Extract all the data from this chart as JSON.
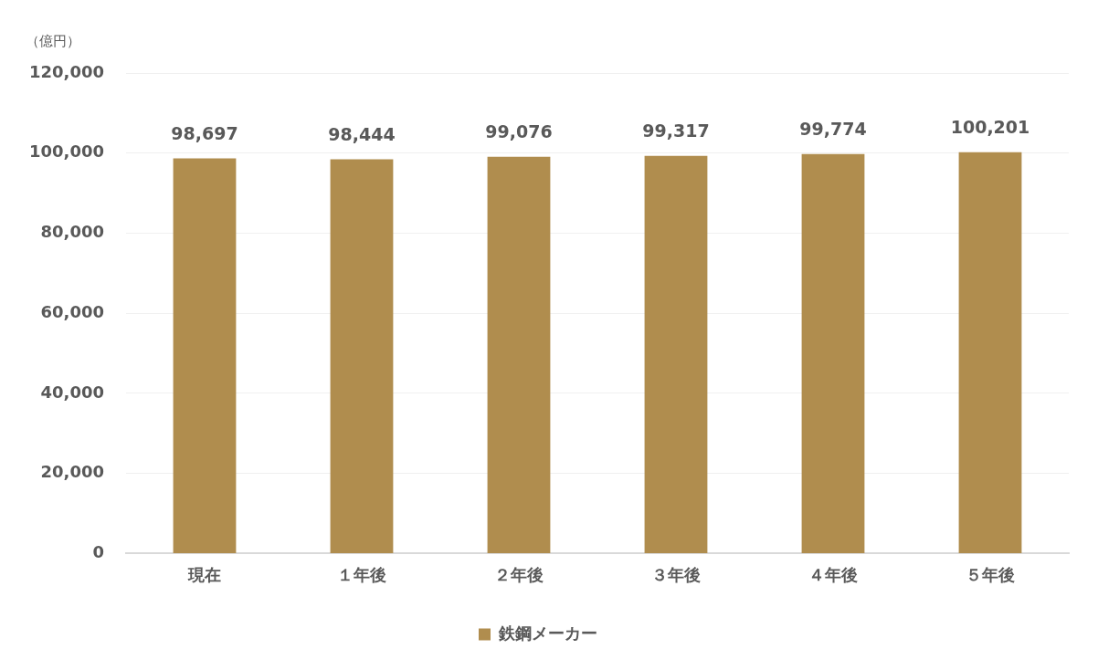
{
  "chart_data": {
    "type": "bar",
    "ylabel": "（億円）",
    "categories": [
      "現在",
      "１年後",
      "２年後",
      "３年後",
      "４年後",
      "５年後"
    ],
    "series": [
      {
        "name": "鉄鋼メーカー",
        "color": "#b08d4e",
        "values": [
          98697,
          98444,
          99076,
          99317,
          99774,
          100201
        ],
        "value_labels": [
          "98,697",
          "98,444",
          "99,076",
          "99,317",
          "99,774",
          "100,201"
        ]
      }
    ],
    "ylim": [
      0,
      120000
    ],
    "yticks": [
      0,
      {
        "value": 20000,
        "label": "20,000"
      },
      {
        "value": 40000,
        "label": "40,000"
      },
      {
        "value": 60000,
        "label": "60,000"
      },
      {
        "value": 80000,
        "label": "80,000"
      },
      {
        "value": 100000,
        "label": "100,000"
      },
      {
        "value": 120000,
        "label": "120,000"
      }
    ],
    "grid": "y",
    "legend": "bottom"
  }
}
